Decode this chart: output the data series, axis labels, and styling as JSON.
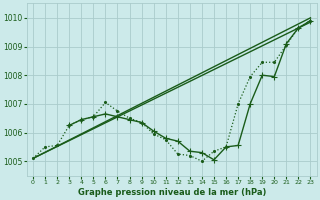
{
  "bg_color": "#cceaea",
  "grid_color": "#aacccc",
  "line_color": "#1a5c1a",
  "title": "Graphe pression niveau de la mer (hPa)",
  "ylim": [
    1004.5,
    1010.5
  ],
  "xlim": [
    -0.5,
    23.5
  ],
  "yticks": [
    1005,
    1006,
    1007,
    1008,
    1009,
    1010
  ],
  "xticks": [
    0,
    1,
    2,
    3,
    4,
    5,
    6,
    7,
    8,
    9,
    10,
    11,
    12,
    13,
    14,
    15,
    16,
    17,
    18,
    19,
    20,
    21,
    22,
    23
  ],
  "series": [
    {
      "x": [
        0,
        1,
        2,
        3,
        4,
        5,
        6,
        7,
        8,
        9,
        10,
        11,
        12,
        13,
        14,
        15,
        16,
        17,
        18,
        19,
        20,
        21,
        22,
        23
      ],
      "y": [
        1005.1,
        1005.5,
        1005.55,
        1006.25,
        1006.45,
        1006.55,
        1007.05,
        1006.75,
        1006.5,
        1006.35,
        1005.95,
        1005.75,
        1005.25,
        1005.2,
        1005.0,
        1005.35,
        1005.5,
        1007.0,
        1007.95,
        1008.45,
        1008.45,
        1009.05,
        1009.65,
        1009.9
      ],
      "linestyle": "dotted",
      "marker": ".",
      "markersize": 2.5,
      "linewidth": 0.9
    },
    {
      "x": [
        0,
        23
      ],
      "y": [
        1005.1,
        1010.0
      ],
      "linestyle": "solid",
      "marker": null,
      "markersize": 0,
      "linewidth": 1.0
    },
    {
      "x": [
        0,
        23
      ],
      "y": [
        1005.1,
        1009.85
      ],
      "linestyle": "solid",
      "marker": null,
      "markersize": 0,
      "linewidth": 1.0
    },
    {
      "x": [
        3,
        4,
        5,
        6,
        7,
        8,
        9,
        10,
        11,
        12,
        13,
        14,
        15,
        16,
        17,
        18,
        19,
        20,
        21,
        22,
        23
      ],
      "y": [
        1006.25,
        1006.45,
        1006.55,
        1006.65,
        1006.55,
        1006.45,
        1006.35,
        1006.05,
        1005.8,
        1005.7,
        1005.35,
        1005.3,
        1005.05,
        1005.5,
        1005.55,
        1007.0,
        1008.0,
        1007.95,
        1009.1,
        1009.65,
        1009.9
      ],
      "linestyle": "solid",
      "marker": "+",
      "markersize": 4,
      "linewidth": 1.0
    }
  ]
}
